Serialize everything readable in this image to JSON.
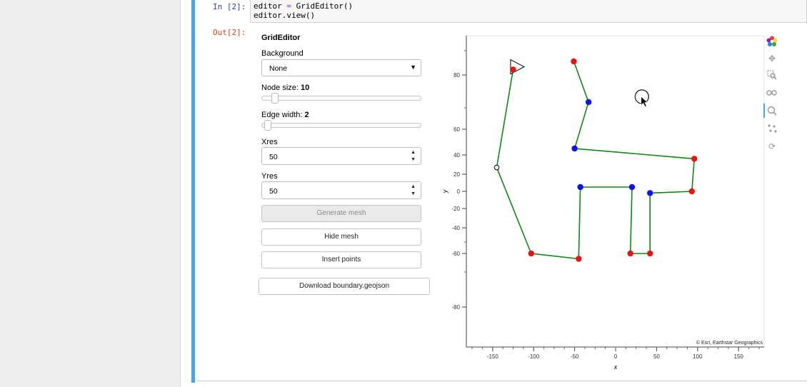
{
  "notebook": {
    "in_prompt": "In [2]:",
    "out_prompt": "Out[2]:",
    "code_lines": [
      "editor = GridEditor()",
      "editor.view()"
    ]
  },
  "panel": {
    "title": "GridEditor",
    "background_label": "Background",
    "background_value": "None",
    "node_size_label": "Node size:",
    "node_size_value": "10",
    "node_size_fraction": 0.05,
    "edge_width_label": "Edge width:",
    "edge_width_value": "2",
    "edge_width_fraction": 0.02,
    "xres_label": "Xres",
    "xres_value": "50",
    "yres_label": "Yres",
    "yres_value": "50",
    "generate_mesh_label": "Generate mesh",
    "hide_mesh_label": "Hide mesh",
    "insert_points_label": "Insert points",
    "download_label": "Download boundary.geojson"
  },
  "plot": {
    "attribution": "© Esri, Earthstar Geographics",
    "xlabel": "x",
    "ylabel": "y",
    "x_ticks": [
      -150,
      -100,
      -50,
      0,
      50,
      100,
      150
    ],
    "y_ticks": [
      80,
      60,
      40,
      20,
      0,
      -20,
      -40,
      -60,
      -80
    ],
    "colors": {
      "edge": "#118811",
      "red_node": "#ee1111",
      "blue_node": "#1111ee"
    }
  },
  "chart_data": {
    "type": "scatter",
    "xlabel": "x",
    "ylabel": "y",
    "x_ticks": [
      -150,
      -100,
      -50,
      0,
      50,
      100,
      150
    ],
    "y_ticks": [
      80,
      60,
      40,
      20,
      0,
      -20,
      -40,
      -60,
      -80
    ],
    "paths": [
      [
        [
          -125,
          82
        ],
        [
          -145,
          27
        ],
        [
          -103,
          -60
        ],
        [
          -45,
          -62
        ],
        [
          -43,
          5
        ],
        [
          20,
          5
        ],
        [
          18,
          -60
        ],
        [
          42,
          -60
        ],
        [
          42,
          -2
        ],
        [
          93,
          0
        ],
        [
          96,
          36
        ],
        [
          -50,
          45
        ],
        [
          -33,
          70
        ],
        [
          -51,
          85
        ]
      ]
    ],
    "nodes": [
      {
        "x": -125,
        "y": 82,
        "color": "red"
      },
      {
        "x": -51,
        "y": 85,
        "color": "red"
      },
      {
        "x": -33,
        "y": 70,
        "color": "blue"
      },
      {
        "x": -50,
        "y": 45,
        "color": "blue"
      },
      {
        "x": 96,
        "y": 36,
        "color": "red"
      },
      {
        "x": -43,
        "y": 5,
        "color": "blue"
      },
      {
        "x": 20,
        "y": 5,
        "color": "blue"
      },
      {
        "x": 42,
        "y": -2,
        "color": "blue"
      },
      {
        "x": 93,
        "y": 0,
        "color": "red"
      },
      {
        "x": -103,
        "y": -60,
        "color": "red"
      },
      {
        "x": -45,
        "y": -62,
        "color": "red"
      },
      {
        "x": 18,
        "y": -60,
        "color": "red"
      },
      {
        "x": 42,
        "y": -60,
        "color": "red"
      }
    ],
    "hollow_points": [
      {
        "x": -145,
        "y": 27
      }
    ],
    "triangle_marker": {
      "x": -122,
      "y": 83
    },
    "cursor_circle": {
      "x": 32,
      "y": 72
    }
  }
}
